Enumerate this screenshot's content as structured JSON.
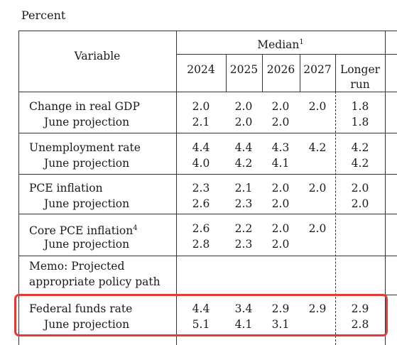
{
  "caption": "Percent",
  "header": {
    "variable": "Variable",
    "median": "Median",
    "median_note": "1",
    "years": [
      "2024",
      "2025",
      "2026",
      "2027"
    ],
    "longer_run_line1": "Longer",
    "longer_run_line2": "run"
  },
  "rows": [
    {
      "label": "Change in real GDP",
      "note": "",
      "values": [
        "2.0",
        "2.0",
        "2.0",
        "2.0"
      ],
      "longer": "1.8"
    },
    {
      "label": "June projection",
      "note": "",
      "values": [
        "2.1",
        "2.0",
        "2.0",
        ""
      ],
      "longer": "1.8"
    },
    {
      "label": "Unemployment rate",
      "note": "",
      "values": [
        "4.4",
        "4.4",
        "4.3",
        "4.2"
      ],
      "longer": "4.2"
    },
    {
      "label": "June projection",
      "note": "",
      "values": [
        "4.0",
        "4.2",
        "4.1",
        ""
      ],
      "longer": "4.2"
    },
    {
      "label": "PCE inflation",
      "note": "",
      "values": [
        "2.3",
        "2.1",
        "2.0",
        "2.0"
      ],
      "longer": "2.0"
    },
    {
      "label": "June projection",
      "note": "",
      "values": [
        "2.6",
        "2.3",
        "2.0",
        ""
      ],
      "longer": "2.0"
    },
    {
      "label": "Core PCE inflation",
      "note": "4",
      "values": [
        "2.6",
        "2.2",
        "2.0",
        "2.0"
      ],
      "longer": ""
    },
    {
      "label": "June projection",
      "note": "",
      "values": [
        "2.8",
        "2.3",
        "2.0",
        ""
      ],
      "longer": ""
    }
  ],
  "memo": {
    "line1": "Memo: Projected",
    "line2": "appropriate policy path"
  },
  "policy_rows": [
    {
      "label": "Federal funds rate",
      "values": [
        "4.4",
        "3.4",
        "2.9",
        "2.9"
      ],
      "longer": "2.9"
    },
    {
      "label": "June projection",
      "values": [
        "5.1",
        "4.1",
        "3.1",
        ""
      ],
      "longer": "2.8"
    }
  ],
  "highlight_color": "#e53935"
}
